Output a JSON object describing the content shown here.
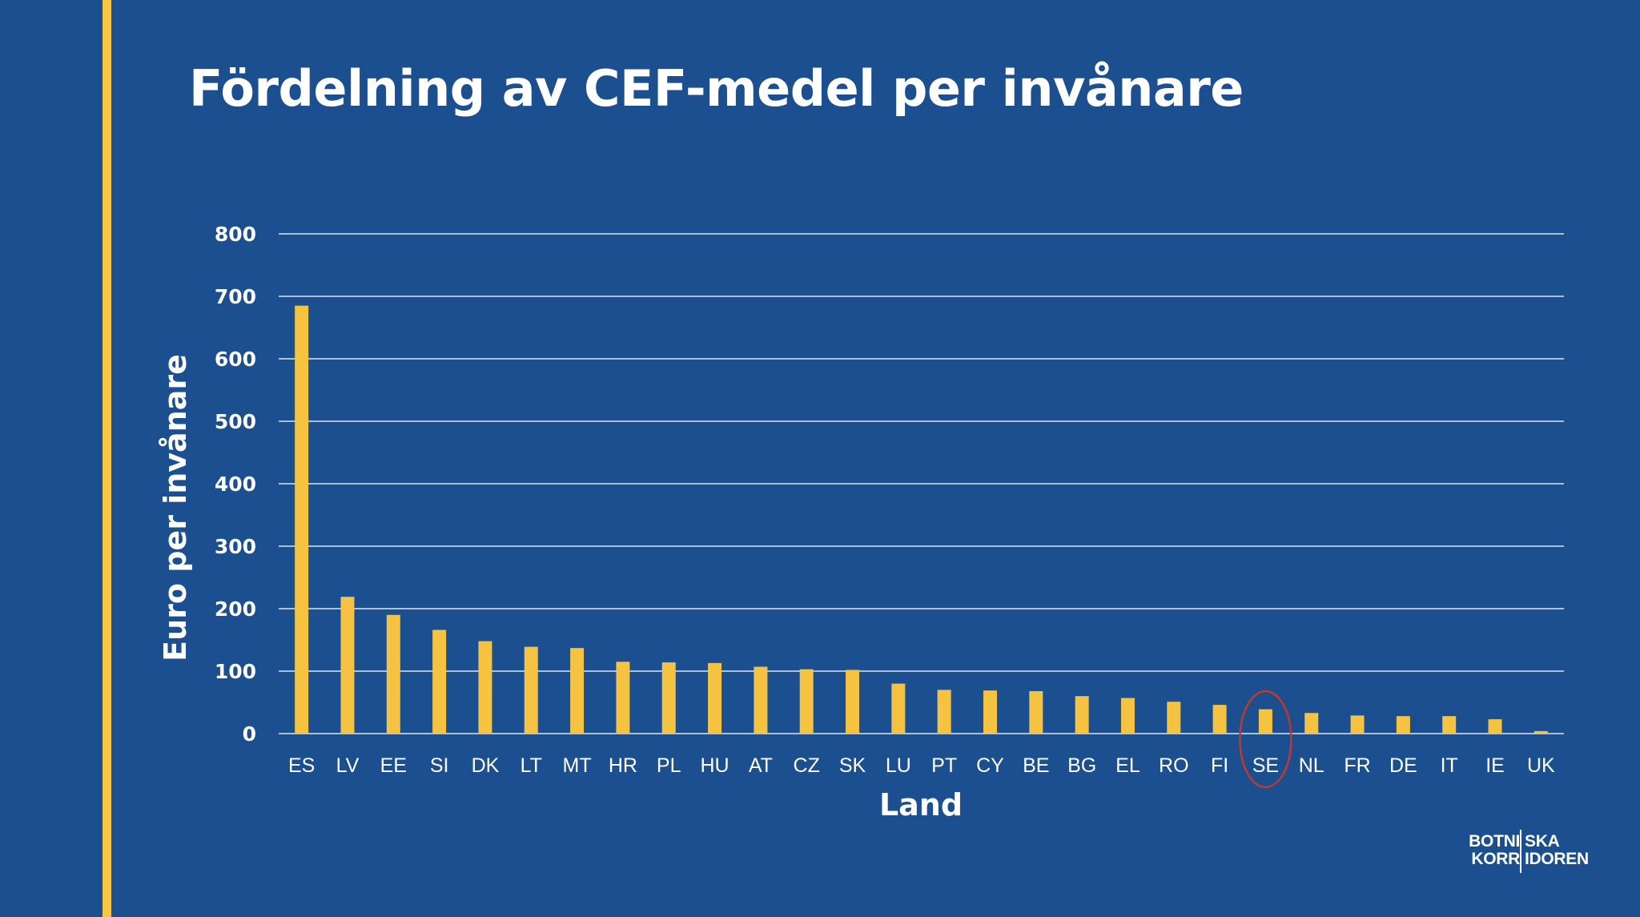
{
  "slide": {
    "title": "Fördelning av CEF-medel per invånare",
    "logo": {
      "line1_left": "BOTNI",
      "line1_right": "SKA",
      "line2_left": "KORR",
      "line2_right": "IDOREN"
    }
  },
  "colors": {
    "background": "#1b4f8f",
    "accent": "#f5c842",
    "bar": "#f5c242",
    "grid": "#ffffff",
    "highlight_circle": "#c0392b"
  },
  "chart_data": {
    "type": "bar",
    "title": "Fördelning av CEF-medel per invånare",
    "xlabel": "Land",
    "ylabel": "Euro per invånare",
    "ylim": [
      0,
      800
    ],
    "yticks": [
      0,
      100,
      200,
      300,
      400,
      500,
      600,
      700,
      800
    ],
    "grid": true,
    "categories": [
      "ES",
      "LV",
      "EE",
      "SI",
      "DK",
      "LT",
      "MT",
      "HR",
      "PL",
      "HU",
      "AT",
      "CZ",
      "SK",
      "LU",
      "PT",
      "CY",
      "BE",
      "BG",
      "EL",
      "RO",
      "FI",
      "SE",
      "NL",
      "FR",
      "DE",
      "IT",
      "IE",
      "UK"
    ],
    "values": [
      685,
      219,
      190,
      166,
      148,
      139,
      137,
      115,
      114,
      113,
      107,
      103,
      102,
      80,
      70,
      69,
      68,
      60,
      57,
      51,
      46,
      39,
      33,
      29,
      28,
      28,
      23,
      4
    ],
    "highlight": "SE"
  }
}
